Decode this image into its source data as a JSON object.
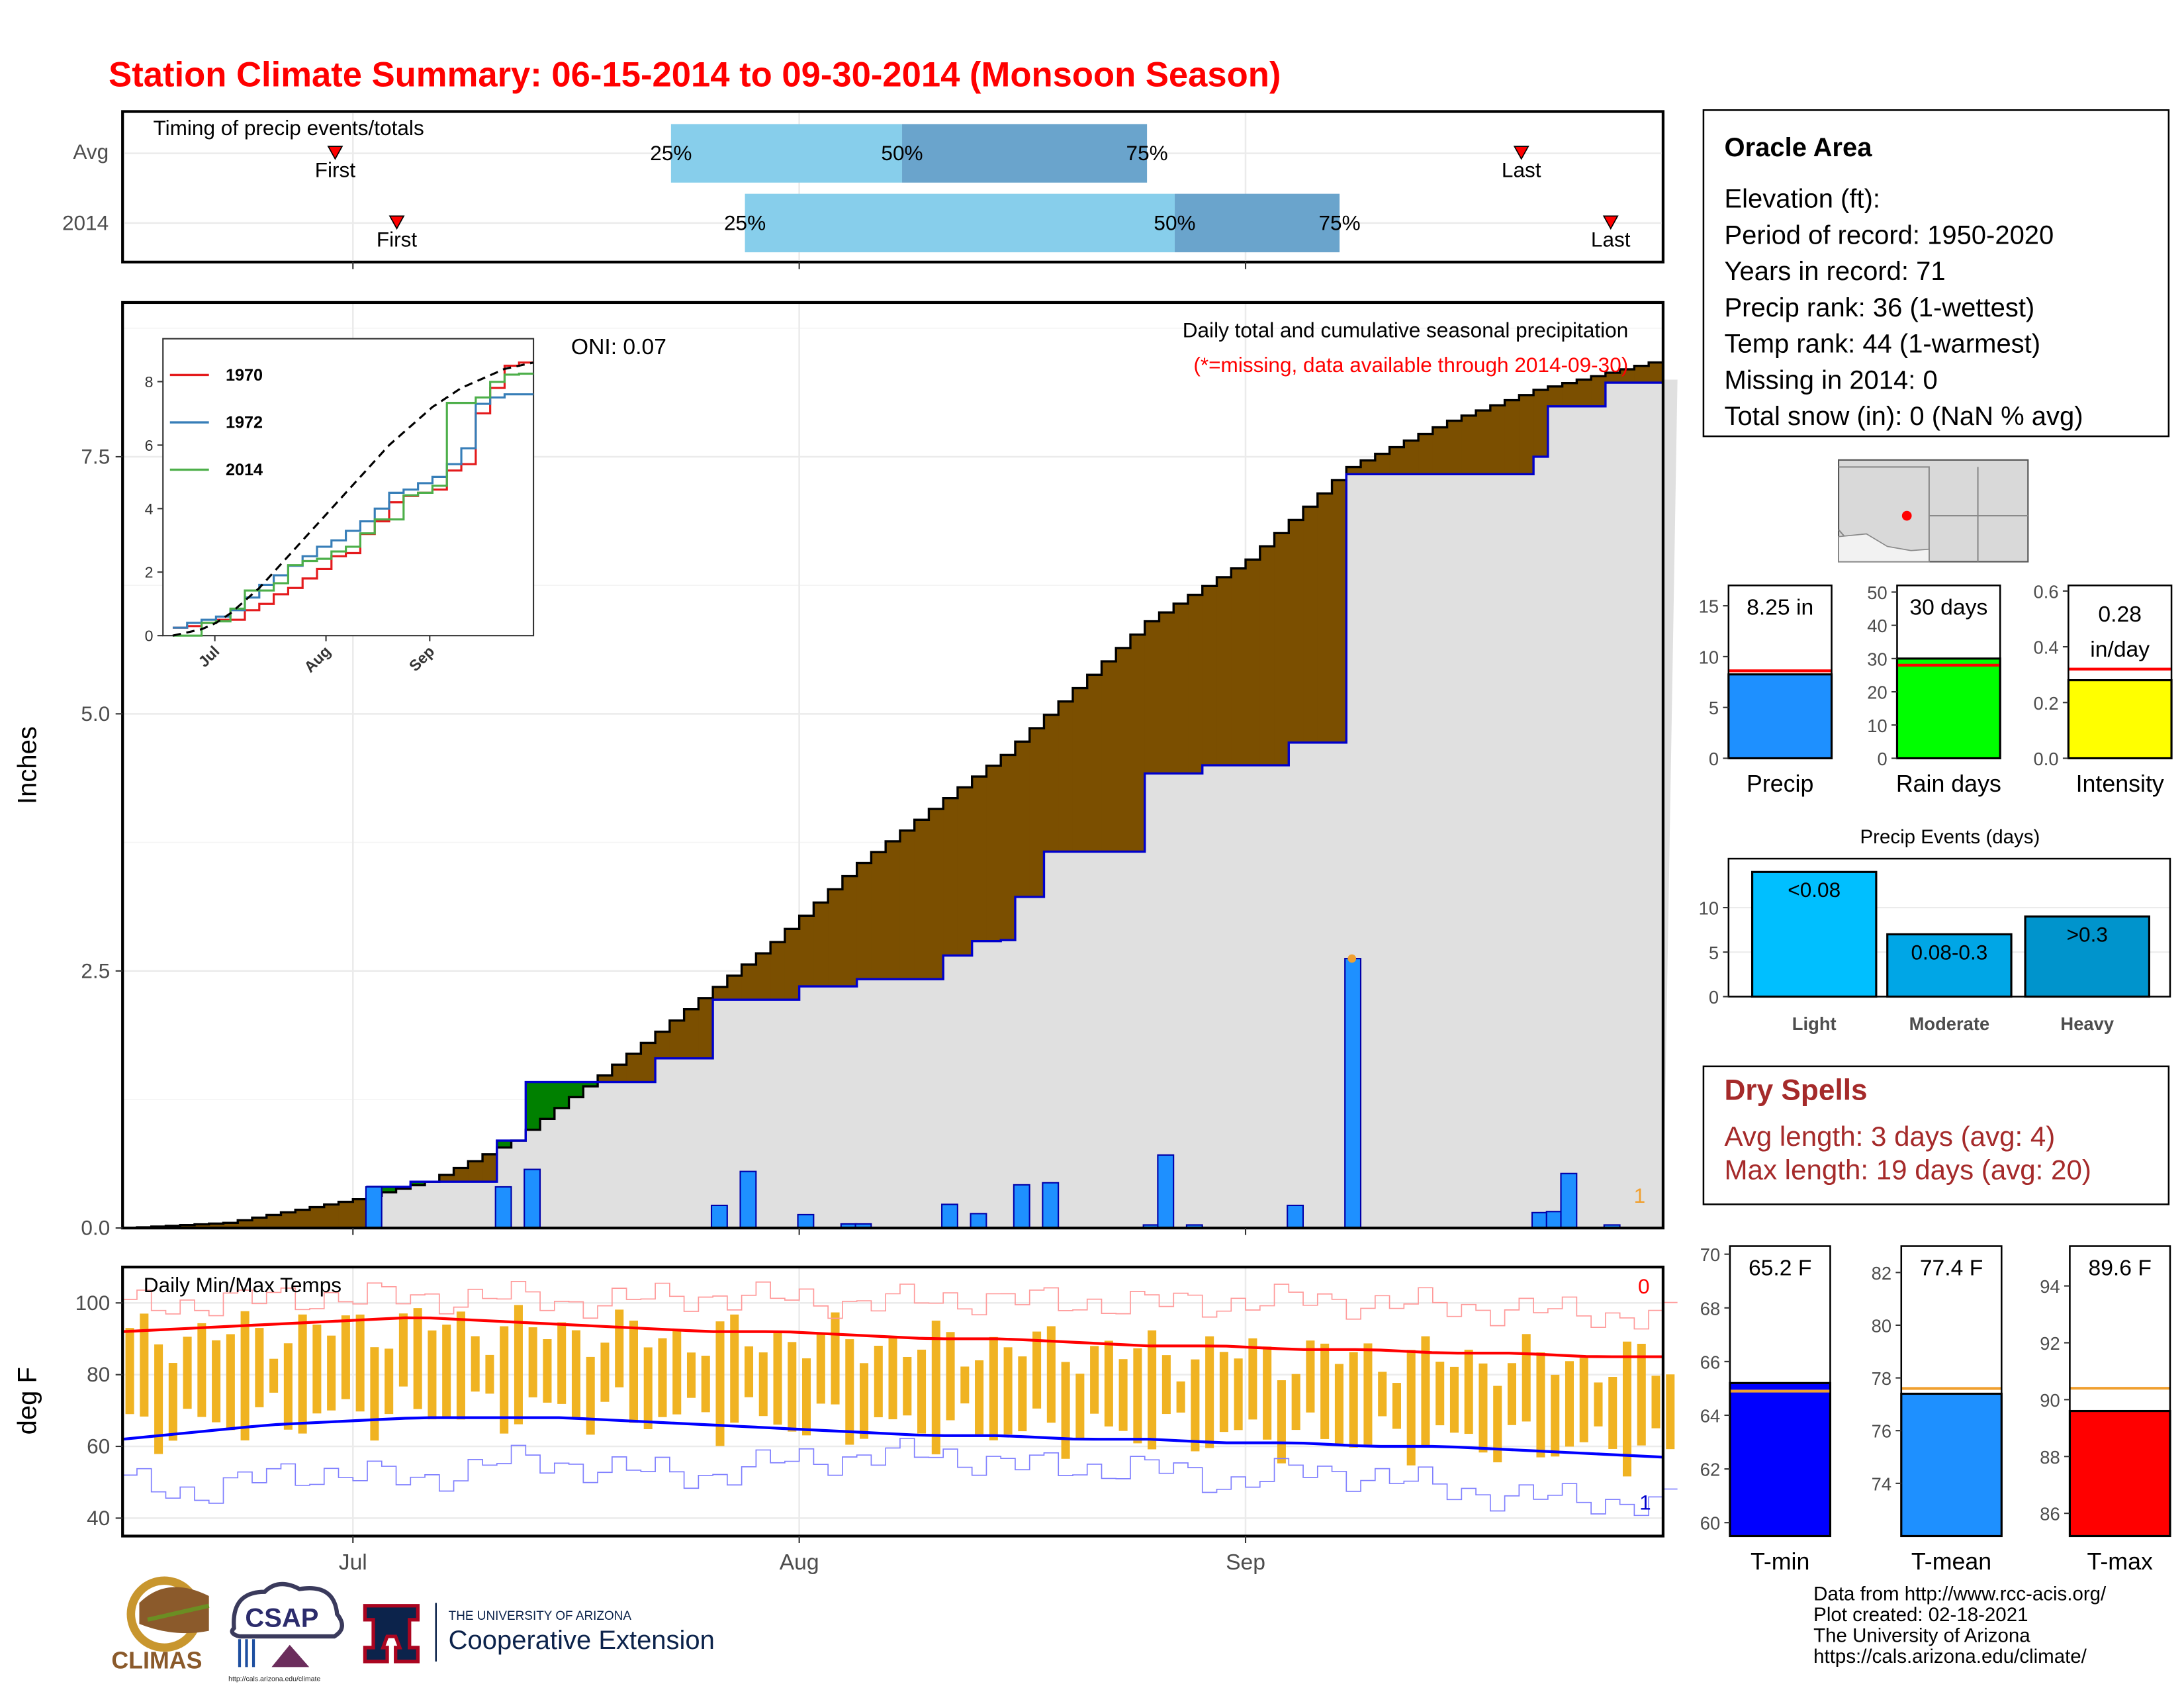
{
  "title": "Station Climate Summary: 06-15-2014 to 09-30-2014 (Monsoon Season)",
  "colors": {
    "title": "#ff0000",
    "wetter": "#008000",
    "drier": "#7b4f00",
    "avg_fill": "#e0e0e0",
    "daily_bar": "#1e90ff",
    "line_avg": "#0000cc",
    "tmax": "#ff0000",
    "tmin": "#0000ff",
    "temp_bar": "#f0b322",
    "dryspell": "#a52a2a"
  },
  "timing": {
    "title": "Timing of precip events/totals",
    "rows": [
      {
        "label": "Avg",
        "first": 0.138,
        "p25": 0.356,
        "p50": 0.506,
        "p75": 0.665,
        "last": 0.908
      },
      {
        "label": "2014",
        "first": 0.178,
        "p25": 0.404,
        "p50": 0.683,
        "p75": 0.79,
        "last": 0.966
      }
    ],
    "pct_labels": [
      "25%",
      "50%",
      "75%"
    ],
    "first_label": "First",
    "last_label": "Last"
  },
  "main_chart": {
    "ylabel": "Inches",
    "yticks": [
      "0.0",
      "2.5",
      "5.0",
      "7.5"
    ],
    "xticks": [
      "Jul",
      "Aug",
      "Sep"
    ],
    "oni": "ONI: 0.07",
    "caption": "Daily total and cumulative seasonal precipitation",
    "missing_note": "(*=missing, data available through 2014-09-30)",
    "corner_count": "1"
  },
  "chart_data": [
    {
      "type": "area",
      "title": "Daily total and cumulative seasonal precipitation",
      "ylabel": "Inches",
      "ylim": [
        0,
        9.0
      ],
      "x_range": [
        "2014-06-15",
        "2014-09-30"
      ],
      "series": [
        {
          "name": "Avg cumulative",
          "points": [
            [
              "06-15",
              0
            ],
            [
              "06-22",
              0.05
            ],
            [
              "07-01",
              0.28
            ],
            [
              "07-06",
              0.45
            ],
            [
              "07-12",
              0.85
            ],
            [
              "07-21",
              1.8
            ],
            [
              "07-30",
              2.78
            ],
            [
              "08-05",
              3.55
            ],
            [
              "08-15",
              4.6
            ],
            [
              "08-25",
              5.9
            ],
            [
              "09-01",
              6.5
            ],
            [
              "09-08",
              7.4
            ],
            [
              "09-15",
              7.85
            ],
            [
              "09-21",
              8.15
            ],
            [
              "09-30",
              8.45
            ]
          ]
        },
        {
          "name": "2014 cumulative",
          "points": [
            [
              "06-15",
              0
            ],
            [
              "07-01",
              0
            ],
            [
              "07-02",
              0.4
            ],
            [
              "07-05",
              0.45
            ],
            [
              "07-10",
              0.45
            ],
            [
              "07-11",
              0.85
            ],
            [
              "07-12",
              0.85
            ],
            [
              "07-13",
              1.42
            ],
            [
              "07-21",
              1.42
            ],
            [
              "07-22",
              1.65
            ],
            [
              "07-25",
              1.65
            ],
            [
              "07-26",
              2.22
            ],
            [
              "07-31",
              2.22
            ],
            [
              "08-01",
              2.35
            ],
            [
              "08-05",
              2.42
            ],
            [
              "08-10",
              2.42
            ],
            [
              "08-11",
              2.65
            ],
            [
              "08-13",
              2.79
            ],
            [
              "08-15",
              2.8
            ],
            [
              "08-16",
              3.22
            ],
            [
              "08-18",
              3.66
            ],
            [
              "08-24",
              3.66
            ],
            [
              "08-25",
              4.42
            ],
            [
              "08-29",
              4.5
            ],
            [
              "09-03",
              4.5
            ],
            [
              "09-04",
              4.72
            ],
            [
              "09-07",
              4.72
            ],
            [
              "09-08",
              7.33
            ],
            [
              "09-20",
              7.33
            ],
            [
              "09-21",
              7.5
            ],
            [
              "09-22",
              7.99
            ],
            [
              "09-26",
              8.22
            ],
            [
              "09-30",
              8.25
            ]
          ]
        },
        {
          "name": "Daily precip",
          "points": [
            [
              "07-02",
              0.4
            ],
            [
              "07-11",
              0.4
            ],
            [
              "07-13",
              0.57
            ],
            [
              "07-26",
              0.22
            ],
            [
              "07-28",
              0.55
            ],
            [
              "08-01",
              0.13
            ],
            [
              "08-04",
              0.04
            ],
            [
              "08-05",
              0.04
            ],
            [
              "08-11",
              0.23
            ],
            [
              "08-13",
              0.14
            ],
            [
              "08-16",
              0.42
            ],
            [
              "08-18",
              0.44
            ],
            [
              "08-25",
              0.03
            ],
            [
              "08-26",
              0.71
            ],
            [
              "08-28",
              0.03
            ],
            [
              "09-04",
              0.22
            ],
            [
              "09-08",
              2.62
            ],
            [
              "09-21",
              0.15
            ],
            [
              "09-22",
              0.16
            ],
            [
              "09-23",
              0.53
            ],
            [
              "09-26",
              0.03
            ]
          ]
        }
      ]
    },
    {
      "type": "line",
      "title": "",
      "xlabel": "",
      "ylabel": "",
      "xticks": [
        "Jul",
        "Aug",
        "Sep"
      ],
      "yticks": [
        "0",
        "2",
        "4",
        "6",
        "8"
      ],
      "ylim": [
        0,
        9
      ],
      "series": [
        {
          "name": "1970",
          "color": "#e41a1c",
          "values": [
            0.25,
            0.3,
            0.4,
            0.5,
            0.5,
            0.8,
            1.0,
            1.3,
            1.5,
            1.8,
            2.1,
            2.5,
            2.6,
            3.2,
            3.6,
            4.2,
            4.4,
            4.5,
            4.6,
            5.2,
            5.4,
            7.0,
            7.8,
            8.5,
            8.6,
            8.6
          ]
        },
        {
          "name": "1972",
          "color": "#377eb8",
          "values": [
            0.25,
            0.4,
            0.5,
            0.6,
            0.8,
            1.2,
            1.6,
            1.9,
            2.2,
            2.5,
            2.8,
            3.0,
            3.3,
            3.6,
            4.0,
            4.5,
            4.6,
            4.8,
            5.0,
            5.4,
            5.9,
            7.3,
            7.5,
            7.6,
            7.6,
            7.6
          ]
        },
        {
          "name": "2014",
          "color": "#4daf4a",
          "values": [
            0.0,
            0.0,
            0.4,
            0.45,
            0.85,
            1.42,
            1.42,
            1.65,
            2.22,
            2.35,
            2.42,
            2.65,
            2.8,
            3.22,
            3.66,
            3.66,
            4.42,
            4.5,
            4.72,
            7.33,
            7.33,
            7.5,
            7.99,
            8.22,
            8.25,
            8.25
          ]
        },
        {
          "name": "",
          "color": "#000000",
          "values": [
            0,
            0.1,
            0.2,
            0.4,
            0.7,
            1.1,
            1.5,
            2.0,
            2.5,
            3.0,
            3.5,
            4.0,
            4.5,
            5.0,
            5.5,
            6.0,
            6.4,
            6.8,
            7.2,
            7.5,
            7.8,
            8.0,
            8.2,
            8.4,
            8.5,
            8.6
          ]
        }
      ]
    },
    {
      "type": "bar",
      "title": "Daily Min/Max Temps",
      "ylabel": "deg F",
      "yticks": [
        "40",
        "60",
        "80",
        "100"
      ],
      "ylim": [
        35,
        110
      ],
      "series": [
        {
          "name": "Avg Tmax",
          "values": [
            92,
            93,
            94,
            95,
            96,
            95,
            94,
            93,
            92,
            92,
            91,
            90,
            90,
            89,
            88,
            88,
            87,
            87,
            86,
            86,
            85,
            85
          ]
        },
        {
          "name": "Avg Tmin",
          "values": [
            62,
            64,
            66,
            67,
            68,
            68,
            68,
            67,
            66,
            65,
            64,
            63,
            63,
            62,
            62,
            61,
            61,
            60,
            60,
            59,
            58,
            57
          ]
        },
        {
          "name": "Record Tmax",
          "values": [
            99,
            100,
            101,
            102,
            101,
            102,
            100,
            101,
            102,
            101,
            100,
            101,
            101,
            100,
            100,
            100,
            101,
            100,
            99,
            98,
            97,
            96
          ]
        },
        {
          "name": "Record Tmin",
          "values": [
            50,
            47,
            52,
            53,
            50,
            56,
            55,
            53,
            52,
            56,
            57,
            58,
            55,
            54,
            54,
            50,
            53,
            52,
            48,
            46,
            45,
            44
          ]
        }
      ],
      "corner_max": "0",
      "corner_min": "1"
    },
    {
      "type": "bar",
      "title": "",
      "categories": [
        "Precip",
        "Rain days",
        "Intensity"
      ],
      "values": [
        8.25,
        30,
        0.28
      ],
      "averages": [
        8.6,
        28,
        0.32
      ],
      "ylims": [
        [
          0,
          17
        ],
        [
          0,
          52
        ],
        [
          0,
          0.62
        ]
      ],
      "labels": [
        "8.25 in",
        "30 days",
        "0.28\nin/day"
      ]
    },
    {
      "type": "bar",
      "title": "Precip Events (days)",
      "categories": [
        "Light",
        "Moderate",
        "Heavy"
      ],
      "values": [
        14,
        7,
        9
      ],
      "labels": [
        "<0.08",
        "0.08-0.3",
        ">0.3"
      ],
      "ylim": [
        0,
        15.5
      ]
    },
    {
      "type": "bar",
      "title": "",
      "categories": [
        "T-min",
        "T-mean",
        "T-max"
      ],
      "values": [
        65.2,
        77.4,
        89.6
      ],
      "averages": [
        64.9,
        77.6,
        90.4
      ],
      "labels": [
        "65.2 F",
        "77.4 F",
        "89.6 F"
      ],
      "ylims": [
        [
          59.5,
          70.3
        ],
        [
          72,
          83
        ],
        [
          85.2,
          95.4
        ]
      ]
    }
  ],
  "inset": {
    "legend": [
      "1970",
      "1972",
      "2014"
    ],
    "xticks": [
      "Jul",
      "Aug",
      "Sep"
    ],
    "yticks": [
      "0",
      "2",
      "4",
      "6",
      "8"
    ]
  },
  "temps": {
    "title": "Daily Min/Max Temps",
    "ylabel": "deg F",
    "yticks": [
      "40",
      "60",
      "80",
      "100"
    ],
    "corner_max": "0",
    "corner_min": "1"
  },
  "station": {
    "name": "Oracle Area",
    "lines": [
      "Elevation (ft):",
      "Period of record: 1950-2020",
      "Years in record: 71",
      "Precip rank: 36 (1-wettest)",
      "Temp rank: 44 (1-warmest)",
      "Missing in 2014: 0",
      "Total snow (in): 0 (NaN % avg)"
    ]
  },
  "mini_bars": {
    "precip": {
      "label": "Precip",
      "value_label": "8.25 in",
      "yticks": [
        "0",
        "5",
        "10",
        "15"
      ]
    },
    "raindays": {
      "label": "Rain days",
      "value_label": "30 days",
      "yticks": [
        "0",
        "10",
        "20",
        "30",
        "40",
        "50"
      ]
    },
    "intensity": {
      "label": "Intensity",
      "value_label_1": "0.28",
      "value_label_2": "in/day",
      "yticks": [
        "0.0",
        "0.2",
        "0.4",
        "0.6"
      ]
    }
  },
  "events": {
    "title": "Precip Events (days)",
    "yticks": [
      "0",
      "5",
      "10"
    ],
    "bars": [
      {
        "label": "Light",
        "text": "<0.08",
        "color": "#00bfff"
      },
      {
        "label": "Moderate",
        "text": "0.08-0.3",
        "color": "#00a6e6"
      },
      {
        "label": "Heavy",
        "text": ">0.3",
        "color": "#0094cc"
      }
    ]
  },
  "dry_spells": {
    "title": "Dry Spells",
    "avg": "Avg length: 3 days (avg: 4)",
    "max": "Max length: 19 days (avg: 20)"
  },
  "temp_bars": {
    "tmin": {
      "label": "T-min",
      "value_label": "65.2 F",
      "yticks": [
        "60",
        "62",
        "64",
        "66",
        "68",
        "70"
      ],
      "color": "#0000ff"
    },
    "tmean": {
      "label": "T-mean",
      "value_label": "77.4 F",
      "yticks": [
        "74",
        "76",
        "78",
        "80",
        "82"
      ],
      "color": "#1e90ff"
    },
    "tmax": {
      "label": "T-max",
      "value_label": "89.6 F",
      "yticks": [
        "86",
        "88",
        "90",
        "92",
        "94"
      ],
      "color": "#ff0000"
    }
  },
  "footer": {
    "lines": [
      "Data from http://www.rcc-acis.org/",
      "Plot created: 02-18-2021",
      "The University of Arizona",
      "https://cals.arizona.edu/climate/"
    ],
    "climas": "CLIMAS",
    "csap": "CSAP",
    "csap_url": "http://cals.arizona.edu/climate",
    "ua_top": "THE UNIVERSITY OF ARIZONA",
    "ua_bottom": "Cooperative Extension"
  }
}
